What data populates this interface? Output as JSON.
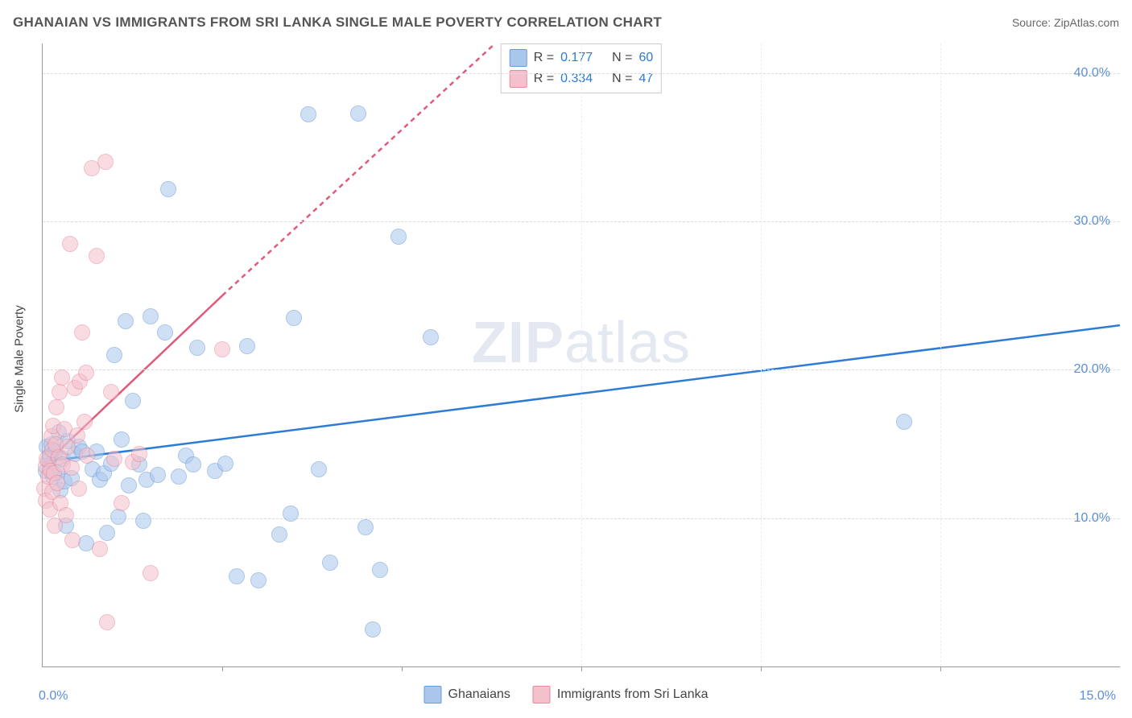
{
  "title": "GHANAIAN VS IMMIGRANTS FROM SRI LANKA SINGLE MALE POVERTY CORRELATION CHART",
  "source_label": "Source: ",
  "source_name": "ZipAtlas.com",
  "y_axis_label": "Single Male Poverty",
  "watermark_a": "ZIP",
  "watermark_b": "atlas",
  "chart": {
    "type": "scatter",
    "background_color": "#ffffff",
    "grid_color": "#dddddd",
    "axis_color": "#999999",
    "tick_label_color": "#5a8fd6",
    "xlim": [
      0,
      15
    ],
    "ylim": [
      0,
      42
    ],
    "x_ticks_minor": [
      2.5,
      5.0,
      7.5,
      10.0,
      12.5
    ],
    "x_tick_labels": [
      {
        "value": 0,
        "label": "0.0%"
      },
      {
        "value": 15,
        "label": "15.0%"
      }
    ],
    "y_tick_labels": [
      {
        "value": 10,
        "label": "10.0%"
      },
      {
        "value": 20,
        "label": "20.0%"
      },
      {
        "value": 30,
        "label": "30.0%"
      },
      {
        "value": 40,
        "label": "40.0%"
      }
    ],
    "marker_radius": 9,
    "marker_opacity": 0.55,
    "line_width": 2.5
  },
  "series": [
    {
      "name": "Ghanaians",
      "fill_color": "#a9c7ec",
      "stroke_color": "#6a9bd8",
      "line_color": "#2e7bd6",
      "R": "0.177",
      "N": "60",
      "regression": {
        "x1": 0,
        "y1": 13.8,
        "x2": 15,
        "y2": 23.0,
        "dashed": false
      },
      "points": [
        [
          0.05,
          13.2
        ],
        [
          0.06,
          14.8
        ],
        [
          0.08,
          13.9
        ],
        [
          0.1,
          14.2
        ],
        [
          0.12,
          15.0
        ],
        [
          0.15,
          12.8
        ],
        [
          0.18,
          14.5
        ],
        [
          0.2,
          13.1
        ],
        [
          0.22,
          15.8
        ],
        [
          0.25,
          11.9
        ],
        [
          0.28,
          14.0
        ],
        [
          0.3,
          12.5
        ],
        [
          0.33,
          9.5
        ],
        [
          0.35,
          15.2
        ],
        [
          0.4,
          12.7
        ],
        [
          0.45,
          14.3
        ],
        [
          0.5,
          14.8
        ],
        [
          0.55,
          14.5
        ],
        [
          0.6,
          8.3
        ],
        [
          0.7,
          13.3
        ],
        [
          0.75,
          14.5
        ],
        [
          0.8,
          12.6
        ],
        [
          0.85,
          13.0
        ],
        [
          0.9,
          9.0
        ],
        [
          0.95,
          13.7
        ],
        [
          1.0,
          21.0
        ],
        [
          1.05,
          10.1
        ],
        [
          1.1,
          15.3
        ],
        [
          1.15,
          23.3
        ],
        [
          1.2,
          12.2
        ],
        [
          1.25,
          17.9
        ],
        [
          1.35,
          13.6
        ],
        [
          1.4,
          9.8
        ],
        [
          1.45,
          12.6
        ],
        [
          1.5,
          23.6
        ],
        [
          1.6,
          12.9
        ],
        [
          1.7,
          22.5
        ],
        [
          1.75,
          32.2
        ],
        [
          1.9,
          12.8
        ],
        [
          2.0,
          14.2
        ],
        [
          2.1,
          13.6
        ],
        [
          2.15,
          21.5
        ],
        [
          2.4,
          13.2
        ],
        [
          2.55,
          13.7
        ],
        [
          2.7,
          6.1
        ],
        [
          2.85,
          21.6
        ],
        [
          3.0,
          5.8
        ],
        [
          3.3,
          8.9
        ],
        [
          3.45,
          10.3
        ],
        [
          3.5,
          23.5
        ],
        [
          3.7,
          37.2
        ],
        [
          3.85,
          13.3
        ],
        [
          4.0,
          7.0
        ],
        [
          4.4,
          37.3
        ],
        [
          4.5,
          9.4
        ],
        [
          4.6,
          2.5
        ],
        [
          4.7,
          6.5
        ],
        [
          4.95,
          29.0
        ],
        [
          5.4,
          22.2
        ],
        [
          12.0,
          16.5
        ]
      ]
    },
    {
      "name": "Immigrants from Sri Lanka",
      "fill_color": "#f4c0cb",
      "stroke_color": "#e68aa0",
      "line_color": "#e05a7a",
      "R": "0.334",
      "N": "47",
      "regression": {
        "x1": 0,
        "y1": 13.5,
        "x2": 2.5,
        "y2": 25.0,
        "dashed": false
      },
      "regression_ext": {
        "x1": 2.5,
        "y1": 25.0,
        "x2": 6.3,
        "y2": 42.0,
        "dashed": true
      },
      "points": [
        [
          0.02,
          12.0
        ],
        [
          0.04,
          13.5
        ],
        [
          0.05,
          11.2
        ],
        [
          0.06,
          14.0
        ],
        [
          0.08,
          12.8
        ],
        [
          0.1,
          10.6
        ],
        [
          0.11,
          13.2
        ],
        [
          0.12,
          15.5
        ],
        [
          0.13,
          11.8
        ],
        [
          0.14,
          14.6
        ],
        [
          0.15,
          16.2
        ],
        [
          0.16,
          13.0
        ],
        [
          0.17,
          9.5
        ],
        [
          0.18,
          15.0
        ],
        [
          0.19,
          17.5
        ],
        [
          0.2,
          12.4
        ],
        [
          0.22,
          14.1
        ],
        [
          0.24,
          18.5
        ],
        [
          0.25,
          11.0
        ],
        [
          0.27,
          19.5
        ],
        [
          0.28,
          13.6
        ],
        [
          0.3,
          16.0
        ],
        [
          0.32,
          10.2
        ],
        [
          0.35,
          14.8
        ],
        [
          0.38,
          28.5
        ],
        [
          0.4,
          13.4
        ],
        [
          0.42,
          8.5
        ],
        [
          0.45,
          18.8
        ],
        [
          0.48,
          15.6
        ],
        [
          0.5,
          12.0
        ],
        [
          0.52,
          19.2
        ],
        [
          0.55,
          22.5
        ],
        [
          0.58,
          16.5
        ],
        [
          0.6,
          19.8
        ],
        [
          0.62,
          14.2
        ],
        [
          0.68,
          33.6
        ],
        [
          0.75,
          27.7
        ],
        [
          0.8,
          7.9
        ],
        [
          0.88,
          34.0
        ],
        [
          0.95,
          18.5
        ],
        [
          1.0,
          14.0
        ],
        [
          1.1,
          11.0
        ],
        [
          1.25,
          13.8
        ],
        [
          1.5,
          6.3
        ],
        [
          0.9,
          3.0
        ],
        [
          1.35,
          14.3
        ],
        [
          2.5,
          21.4
        ]
      ]
    }
  ],
  "legend_labels": {
    "R": "R  =",
    "N": "N  ="
  },
  "bottom_legend": [
    {
      "label": "Ghanaians",
      "series_idx": 0
    },
    {
      "label": "Immigrants from Sri Lanka",
      "series_idx": 1
    }
  ]
}
